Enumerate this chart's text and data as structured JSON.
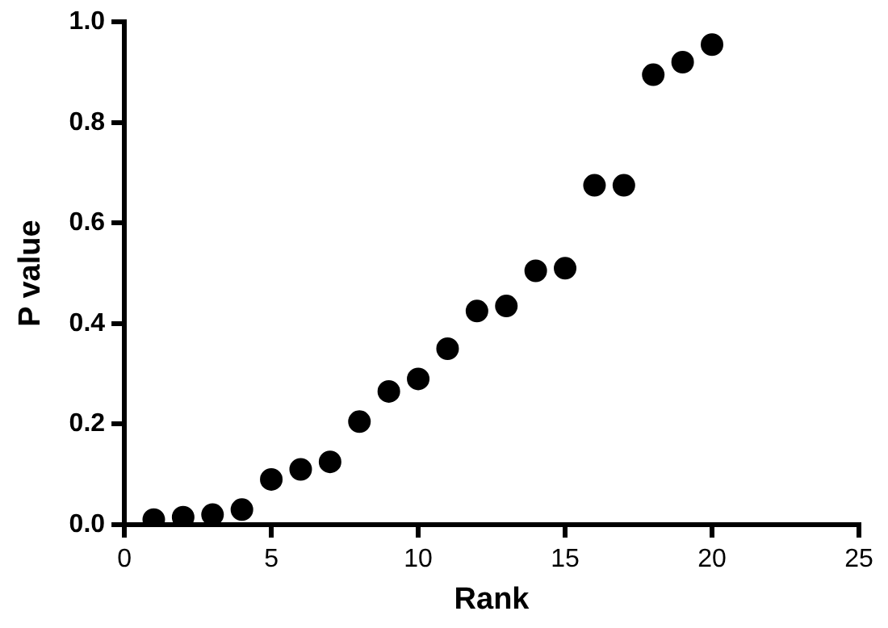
{
  "chart_data": {
    "type": "scatter",
    "xlabel": "Rank",
    "ylabel": "P value",
    "x": [
      1,
      2,
      3,
      4,
      5,
      6,
      7,
      8,
      9,
      10,
      11,
      12,
      13,
      14,
      15,
      16,
      17,
      18,
      19,
      20
    ],
    "series": [
      {
        "color": "#000000",
        "values": [
          0.01,
          0.015,
          0.02,
          0.03,
          0.09,
          0.11,
          0.125,
          0.205,
          0.265,
          0.29,
          0.35,
          0.425,
          0.435,
          0.505,
          0.51,
          0.675,
          0.675,
          0.895,
          0.92,
          0.955
        ]
      }
    ],
    "xlim": [
      0,
      25
    ],
    "xticks": [
      0,
      5,
      10,
      15,
      20,
      25
    ],
    "ylim": [
      0,
      1
    ],
    "yticks": [
      {
        "value": 0,
        "label": "0.0"
      },
      {
        "value": 0.2,
        "label": "0.2"
      },
      {
        "value": 0.4,
        "label": "0.4"
      },
      {
        "value": 0.6,
        "label": "0.6"
      },
      {
        "value": 0.8,
        "label": "0.8"
      },
      {
        "value": 1,
        "label": "1.0"
      }
    ],
    "marker": "circle",
    "grid": false,
    "legend": false
  }
}
